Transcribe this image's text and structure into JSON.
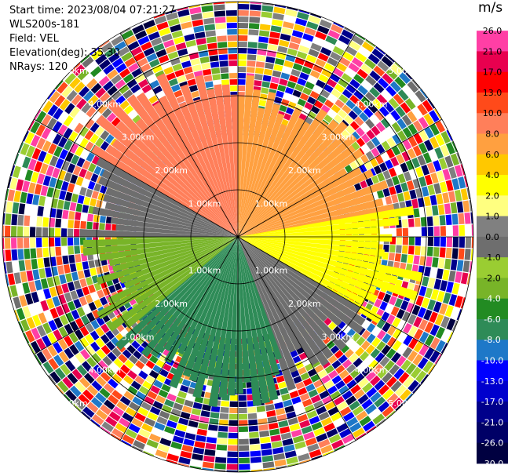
{
  "header": {
    "start_time": "Start time: 2023/08/04 07:21:27",
    "instrument": "WLS200s-181",
    "field": "Field: VEL",
    "elevation": "Elevation(deg): 35.30",
    "nrays": "NRays: 120"
  },
  "chart_data": {
    "type": "heatmap",
    "projection": "polar-ppi",
    "field": "VEL",
    "rays": 120,
    "range_rings_km": [
      1.0,
      2.0,
      3.0,
      4.0,
      5.0
    ],
    "ring_labels": [
      "1.00km",
      "2.00km",
      "3.00km",
      "4.00km",
      "5.00km"
    ],
    "max_range_km": 5.0,
    "colorbar": {
      "unit": "m/s",
      "ticks": [
        "26.0",
        "21.0",
        "17.0",
        "13.0",
        "10.0",
        "8.0",
        "6.0",
        "4.0",
        "2.0",
        "1.0",
        "0.0",
        "-1.0",
        "-2.0",
        "-4.0",
        "-6.0",
        "-8.0",
        "-10.0",
        "-13.0",
        "-17.0",
        "-21.0",
        "-26.0",
        "-30.0"
      ],
      "colors": [
        "#ff3fa5",
        "#e8004f",
        "#ff0000",
        "#ff4a1a",
        "#ff7f5a",
        "#ffa040",
        "#ffc800",
        "#ffff00",
        "#ffff80",
        "#808080",
        "#6e6e6e",
        "#9acd32",
        "#78b428",
        "#228b22",
        "#2e8b57",
        "#1e78c8",
        "#0000ff",
        "#0000cd",
        "#00008b",
        "#000066",
        "#000040"
      ]
    },
    "sectors": [
      {
        "from_deg": 300,
        "to_deg": 360,
        "max_km": 3.5,
        "value": "10.0"
      },
      {
        "from_deg": 0,
        "to_deg": 80,
        "max_km": 3.0,
        "value": "8.0"
      },
      {
        "from_deg": 80,
        "to_deg": 120,
        "max_km": 3.5,
        "value": "4.0"
      },
      {
        "from_deg": 120,
        "to_deg": 160,
        "max_km": 3.0,
        "value": "0.0"
      },
      {
        "from_deg": 160,
        "to_deg": 230,
        "max_km": 3.2,
        "value": "-6.0"
      },
      {
        "from_deg": 230,
        "to_deg": 270,
        "max_km": 3.0,
        "value": "-2.0"
      },
      {
        "from_deg": 270,
        "to_deg": 300,
        "max_km": 3.0,
        "value": "0.0"
      }
    ]
  }
}
